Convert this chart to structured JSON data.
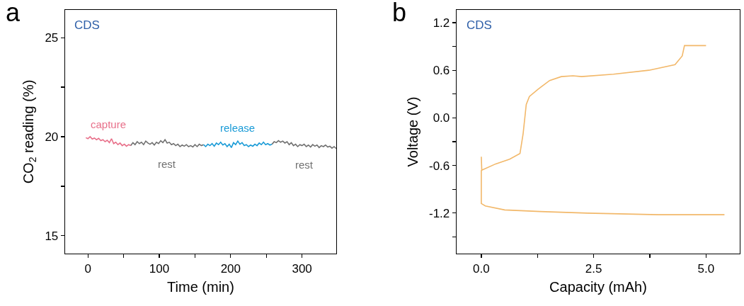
{
  "chart_data": [
    {
      "type": "line",
      "title": "a",
      "xlabel": "Time (min)",
      "ylabel": "CO$_{2}$ reading (%)",
      "annotations": [
        "CDS"
      ],
      "xlim": [
        -32,
        348
      ],
      "xticks": [
        0,
        {
          "value": 50,
          "label": null
        },
        100,
        {
          "value": 150,
          "label": null
        },
        200,
        {
          "value": 250,
          "label": null
        },
        300
      ],
      "ylim": [
        14.1,
        26.4
      ],
      "yticks": [
        15,
        {
          "value": 17.5,
          "label": null
        },
        20,
        {
          "value": 22.5,
          "label": null
        },
        25
      ],
      "grid": false,
      "legend": false,
      "marker": "none",
      "line_style": "solid",
      "series": [
        {
          "name": "capture",
          "color": "#e8708a",
          "x": [
            -3,
            0,
            3,
            6,
            9,
            12,
            15,
            18,
            21,
            24,
            27,
            30,
            33,
            36,
            39,
            42,
            45,
            48,
            51,
            54,
            57,
            60
          ],
          "values": [
            19.95,
            19.9,
            20.0,
            19.88,
            19.93,
            19.85,
            19.92,
            19.8,
            19.85,
            19.75,
            19.82,
            19.7,
            19.9,
            19.65,
            19.72,
            19.6,
            19.68,
            19.55,
            19.62,
            19.52,
            19.6,
            19.55
          ]
        },
        {
          "name": "rest",
          "color": "#707070",
          "x": [
            60,
            63,
            66,
            69,
            72,
            75,
            78,
            81,
            84,
            87,
            90,
            93,
            96,
            99,
            102,
            105,
            108,
            111,
            114,
            117,
            120,
            123,
            126,
            129,
            132,
            135,
            138,
            141,
            144,
            147,
            150,
            153,
            156,
            159,
            162
          ],
          "values": [
            19.55,
            19.7,
            19.6,
            19.75,
            19.65,
            19.72,
            19.6,
            19.78,
            19.68,
            19.62,
            19.7,
            19.58,
            19.72,
            19.65,
            19.8,
            19.7,
            19.85,
            19.68,
            19.72,
            19.6,
            19.65,
            19.55,
            19.62,
            19.5,
            19.58,
            19.52,
            19.6,
            19.5,
            19.55,
            19.48,
            19.6,
            19.5,
            19.62,
            19.55,
            19.6
          ]
        },
        {
          "name": "release",
          "color": "#1a9bd7",
          "x": [
            162,
            165,
            168,
            171,
            174,
            177,
            180,
            183,
            186,
            189,
            192,
            195,
            198,
            201,
            204,
            207,
            210,
            213,
            216,
            219,
            222,
            225,
            228,
            231,
            234,
            237,
            240,
            243,
            246,
            249,
            252,
            255,
            258
          ],
          "values": [
            19.6,
            19.5,
            19.62,
            19.55,
            19.65,
            19.52,
            19.68,
            19.6,
            19.72,
            19.58,
            19.65,
            19.5,
            19.62,
            19.45,
            19.7,
            19.6,
            19.78,
            19.62,
            19.7,
            19.55,
            19.6,
            19.5,
            19.58,
            19.52,
            19.62,
            19.55,
            19.68,
            19.6,
            19.72,
            19.6,
            19.65,
            19.58,
            19.62
          ]
        },
        {
          "name": "rest",
          "color": "#707070",
          "x": [
            258,
            261,
            264,
            267,
            270,
            273,
            276,
            279,
            282,
            285,
            288,
            291,
            294,
            297,
            300,
            303,
            306,
            309,
            312,
            315,
            318,
            321,
            324,
            327,
            330,
            333,
            336,
            339,
            342,
            345,
            348
          ],
          "values": [
            19.62,
            19.75,
            19.7,
            19.8,
            19.72,
            19.78,
            19.68,
            19.75,
            19.6,
            19.7,
            19.55,
            19.62,
            19.5,
            19.6,
            19.55,
            19.62,
            19.5,
            19.58,
            19.48,
            19.6,
            19.52,
            19.58,
            19.45,
            19.55,
            19.5,
            19.58,
            19.48,
            19.52,
            19.42,
            19.5,
            19.4
          ]
        }
      ]
    },
    {
      "type": "line",
      "title": "b",
      "xlabel": "Capacity (mAh)",
      "ylabel": "Voltage (V)",
      "annotations": [
        "CDS"
      ],
      "xlim": [
        -0.55,
        5.75
      ],
      "xticks": [
        {
          "value": 0,
          "label": "0.0"
        },
        {
          "value": 1.25,
          "label": null
        },
        2.5,
        {
          "value": 3.75,
          "label": null
        },
        {
          "value": 5,
          "label": "5.0"
        }
      ],
      "ylim": [
        -1.71,
        1.36
      ],
      "yticks": [
        {
          "value": -1.5,
          "label": null
        },
        -1.2,
        {
          "value": -0.9,
          "label": null
        },
        -0.6,
        {
          "value": -0.3,
          "label": null
        },
        {
          "value": 0,
          "label": "0.0"
        },
        {
          "value": 0.3,
          "label": null
        },
        0.6,
        {
          "value": 0.9,
          "label": null
        },
        1.2
      ],
      "grid": false,
      "legend": false,
      "marker": "none",
      "line_style": "solid",
      "series": [
        {
          "color": "#f2b86a",
          "x": [
            0,
            0.01,
            0.32,
            0.63,
            0.86,
            0.93,
            1.0,
            1.07,
            1.26,
            1.52,
            1.78,
            2.04,
            2.23,
            2.94,
            3.73,
            4.31,
            4.47,
            4.52,
            5.0
          ],
          "values": [
            -0.49,
            -0.66,
            -0.58,
            -0.52,
            -0.45,
            -0.2,
            0.17,
            0.27,
            0.36,
            0.47,
            0.52,
            0.53,
            0.52,
            0.55,
            0.6,
            0.67,
            0.78,
            0.91,
            0.91
          ]
        },
        {
          "color": "#f2b86a",
          "x": [
            0,
            0,
            0.09,
            0.52,
            1.31,
            2.36,
            3.94,
            5.41
          ],
          "values": [
            -0.66,
            -1.08,
            -1.11,
            -1.16,
            -1.18,
            -1.2,
            -1.22,
            -1.22
          ]
        }
      ]
    }
  ]
}
